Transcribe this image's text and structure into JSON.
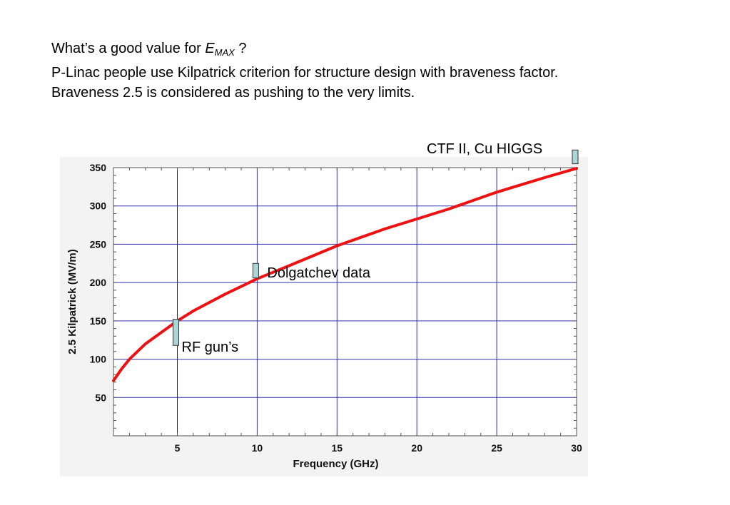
{
  "header": {
    "question_prefix": "What’s a good value for ",
    "emax_symbol": "E",
    "emax_subscript": "MAX",
    "question_suffix": " ?",
    "line2": "P-Linac people use Kilpatrick criterion for structure design with braveness factor.",
    "line3": "Braveness 2.5 is considered as pushing to the very limits."
  },
  "callouts": {
    "ctf": "CTF II, Cu HIGGS",
    "dolgatchev": "Dolgatchev data",
    "rf_gun": "RF gun’s"
  },
  "colors": {
    "curve": "#ee1111",
    "grid_major": "#3333aa",
    "grid_highlight": "#222222",
    "marker_fill": "#a9d6d8",
    "marker_stroke": "#333333",
    "panel": "#f3f3f3"
  },
  "chart_data": {
    "type": "line",
    "title": "",
    "xlabel": "Frequency (GHz)",
    "ylabel": "2.5 Kilpatrick  (MV/m)",
    "xlim": [
      1,
      30
    ],
    "ylim": [
      0,
      350
    ],
    "x_ticks": [
      5,
      10,
      15,
      20,
      25,
      30
    ],
    "y_ticks": [
      50,
      100,
      150,
      200,
      250,
      300,
      350
    ],
    "grid": true,
    "legend": "none",
    "series": [
      {
        "x": [
          1.0,
          1.5,
          2.0,
          3.0,
          4.0,
          5.0,
          6.0,
          8.0,
          10.0,
          12.0,
          15.0,
          18.0,
          20.0,
          22.0,
          25.0,
          28.0,
          30.0
        ],
        "values": [
          72,
          87,
          100,
          120,
          135,
          150,
          163,
          185,
          205,
          222,
          248,
          270,
          283,
          296,
          318,
          337,
          349
        ]
      }
    ],
    "markers": [
      {
        "label_key": "rf_gun",
        "x": 5,
        "y_low": 118,
        "y_high": 152
      },
      {
        "label_key": "dolgatchev",
        "x": 10,
        "y_low": 206,
        "y_high": 225
      },
      {
        "label_key": "ctf",
        "x": 30,
        "y_low": 355,
        "y_high": 373
      }
    ]
  }
}
